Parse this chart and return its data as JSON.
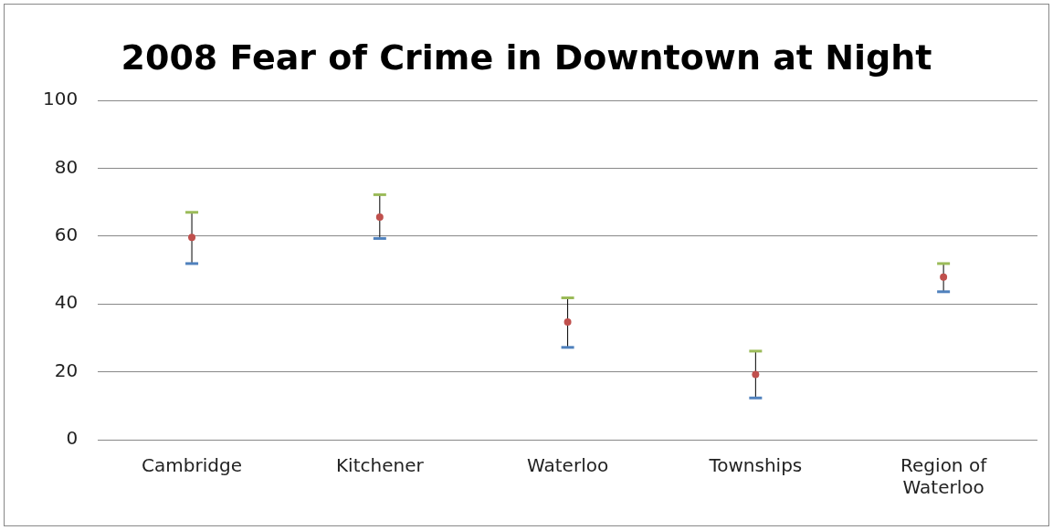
{
  "chart_data": {
    "type": "scatter",
    "title": "2008 Fear of Crime in Downtown at Night",
    "categories": [
      "Cambridge",
      "Kitchener",
      "Waterloo",
      "Townships",
      "Region of Waterloo"
    ],
    "series": [
      {
        "color": "#c0504d",
        "values": [
          59.6,
          65.6,
          34.7,
          19.2,
          47.9
        ],
        "errors": [
          [
            51.9,
            67.0
          ],
          [
            59.3,
            72.2
          ],
          [
            27.2,
            41.8
          ],
          [
            12.3,
            26.1
          ],
          [
            43.6,
            51.9
          ]
        ]
      }
    ],
    "ylim": [
      0,
      100
    ],
    "yticks": [
      0,
      20,
      40,
      60,
      80,
      100
    ],
    "grid": "y",
    "legend": false,
    "marker": "circle"
  }
}
